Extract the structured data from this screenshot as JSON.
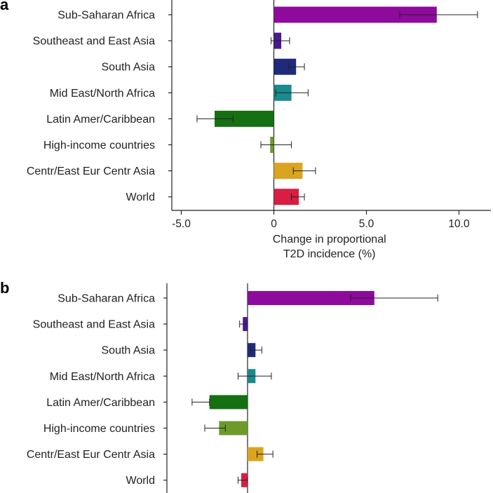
{
  "chart_data": [
    {
      "panel": "a",
      "type": "bar",
      "orientation": "horizontal",
      "categories": [
        "Sub-Saharan Africa",
        "Southeast and East Asia",
        "South Asia",
        "Mid East/North Africa",
        "Latin Amer/Caribbean",
        "High-income countries",
        "Centr/East Eur Centr Asia",
        "World"
      ],
      "values": [
        8.8,
        0.4,
        1.2,
        0.95,
        -3.2,
        -0.2,
        1.55,
        1.35
      ],
      "error_low": [
        6.8,
        -0.15,
        0.8,
        0.1,
        -4.15,
        -0.7,
        1.05,
        0.95
      ],
      "error_high": [
        11.0,
        0.85,
        1.65,
        1.85,
        -2.2,
        0.95,
        2.25,
        1.65
      ],
      "colors": [
        "#8e0a9c",
        "#4a1a8c",
        "#1f2a7a",
        "#1a8a8e",
        "#157012",
        "#6e9a2c",
        "#d9a521",
        "#d81e42"
      ],
      "xticks": [
        "-5.0",
        "0",
        "5.0",
        "10.0"
      ],
      "xtick_values": [
        -5,
        0,
        5,
        10
      ],
      "xlim": [
        -5.5,
        11.5
      ],
      "xlabel_lines": [
        "Change in proportional",
        "T2D incidence (%)"
      ]
    },
    {
      "panel": "b",
      "type": "bar",
      "orientation": "horizontal",
      "categories": [
        "Sub-Saharan Africa",
        "Southeast and East Asia",
        "South Asia",
        "Mid East/North Africa",
        "Latin Amer/Caribbean",
        "High-income countries",
        "Centr/East Eur Centr Asia",
        "World"
      ],
      "values": [
        8.0,
        -0.3,
        0.5,
        0.5,
        -2.4,
        -1.8,
        1.0,
        -0.4
      ],
      "error_low": [
        6.5,
        -0.5,
        0.2,
        -0.6,
        -3.5,
        -2.7,
        0.6,
        -0.6
      ],
      "error_high": [
        12.0,
        0.0,
        0.9,
        1.5,
        -2.4,
        -1.4,
        1.6,
        0.0
      ],
      "colors": [
        "#8e0a9c",
        "#4a1a8c",
        "#1f2a7a",
        "#1a8a8e",
        "#157012",
        "#6e9a2c",
        "#d9a521",
        "#d81e42"
      ],
      "xlim": [
        -3.5,
        12.5
      ]
    }
  ]
}
